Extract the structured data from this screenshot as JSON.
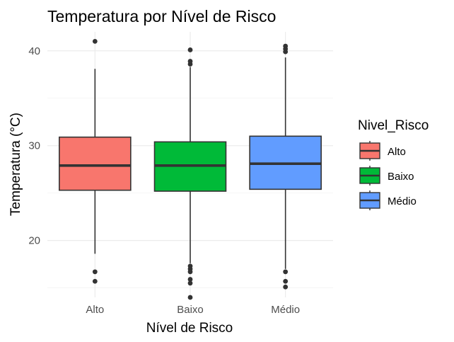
{
  "chart_data": {
    "type": "boxplot",
    "title": "Temperatura por Nível de Risco",
    "xlabel": "Nível de Risco",
    "ylabel": "Temperatura (°C)",
    "ylim": [
      14,
      42
    ],
    "yticks": [
      20,
      30,
      40
    ],
    "grid": true,
    "legend": {
      "title": "Nivel_Risco",
      "placement": "right"
    },
    "categories": [
      "Alto",
      "Baixo",
      "Médio"
    ],
    "series": [
      {
        "name": "Alto",
        "color": "#f8766d",
        "min": 18.6,
        "q1": 25.3,
        "median": 27.9,
        "q3": 30.9,
        "max": 38.1,
        "outliers": [
          16.7,
          15.7,
          41.0
        ]
      },
      {
        "name": "Baixo",
        "color": "#00ba38",
        "min": 17.6,
        "q1": 25.2,
        "median": 27.9,
        "q3": 30.4,
        "max": 38.3,
        "outliers": [
          17.3,
          17.0,
          16.7,
          15.9,
          15.5,
          14.0,
          38.6,
          38.9,
          40.1
        ]
      },
      {
        "name": "Médio",
        "color": "#619cff",
        "min": 17.0,
        "q1": 25.4,
        "median": 28.1,
        "q3": 31.0,
        "max": 39.3,
        "outliers": [
          16.7,
          15.7,
          15.1,
          39.9,
          40.2,
          40.5
        ]
      }
    ]
  }
}
